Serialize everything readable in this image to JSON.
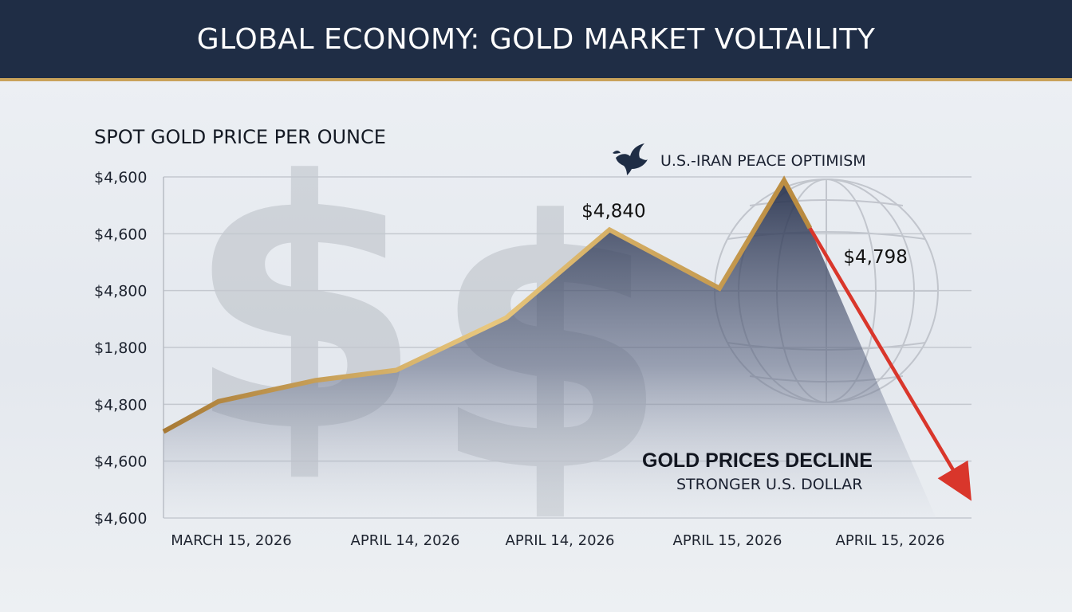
{
  "header": {
    "title": "GLOBAL ECONOMY: GOLD MARKET VOLTAILITY"
  },
  "colors": {
    "header_bg": "#1f2d45",
    "gold": "#c9a25a",
    "area": "#3a455e",
    "decline_arrow": "#d9362b"
  },
  "chart_data": {
    "type": "area",
    "title": "SPOT GOLD PRICE PER OUNCE",
    "yticks": [
      "$4,600",
      "$4,600",
      "$4,800",
      "$1,800",
      "$4,800",
      "$4,600",
      "$4,600"
    ],
    "xticks": [
      "MARCH 15, 2026",
      "APRIL 14, 2026",
      "APRIL 14, 2026",
      "APRIL 15, 2026",
      "APRIL 15, 2026"
    ],
    "series": [
      {
        "x_index": [
          0,
          0.85,
          2.35,
          3.6,
          5.3,
          6.9,
          8.6,
          9.6,
          10.0
        ],
        "level": [
          1.52,
          2.05,
          2.42,
          2.6,
          3.52,
          5.07,
          4.04,
          5.94,
          5.1
        ]
      }
    ],
    "data_labels": [
      {
        "text": "$4,840",
        "at": 5
      },
      {
        "text": "$4,798",
        "at": 8
      }
    ],
    "decline": {
      "from": 8,
      "to_x_index": 12.5,
      "to_level": 0.3
    },
    "annotations": {
      "peak_event": "U.S.-IRAN PEACE OPTIMISM",
      "decline_title": "GOLD PRICES DECLINE",
      "decline_sub": "STRONGER U.S. DOLLAR"
    },
    "icons": [
      "dove-icon",
      "globe-icon",
      "dollar-sign-icon"
    ],
    "grid": true
  }
}
